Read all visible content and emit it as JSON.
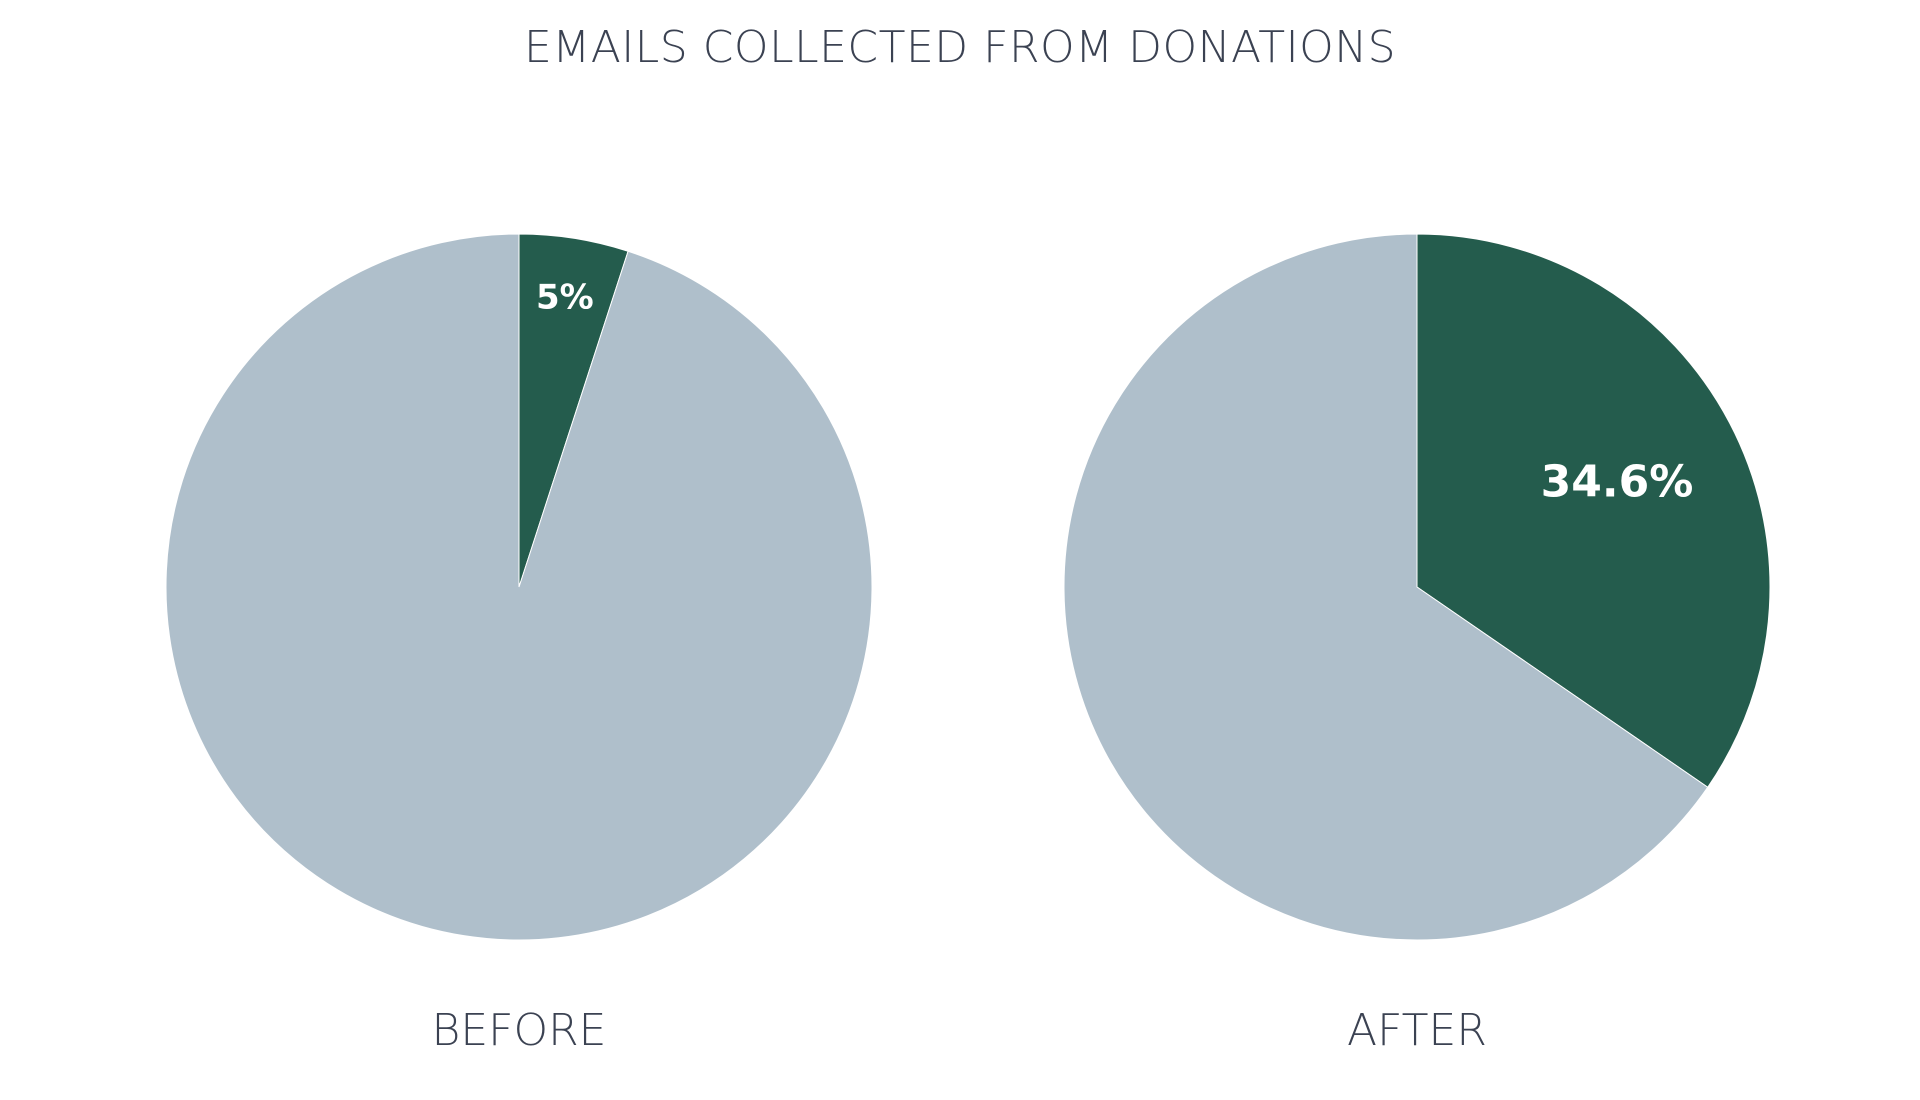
{
  "title": "EMAILS COLLECTED FROM DONATIONS",
  "colors": {
    "collected": "#245c4d",
    "remainder": "#afbfcb",
    "text": "#3b4252"
  },
  "chart_data": [
    {
      "type": "pie",
      "title": "BEFORE",
      "slices": [
        {
          "label": "5%",
          "value": 5,
          "color": "#245c4d"
        },
        {
          "label": "",
          "value": 95,
          "color": "#afbfcb"
        }
      ]
    },
    {
      "type": "pie",
      "title": "AFTER",
      "slices": [
        {
          "label": "34.6%",
          "value": 34.6,
          "color": "#245c4d"
        },
        {
          "label": "",
          "value": 65.4,
          "color": "#afbfcb"
        }
      ]
    }
  ]
}
